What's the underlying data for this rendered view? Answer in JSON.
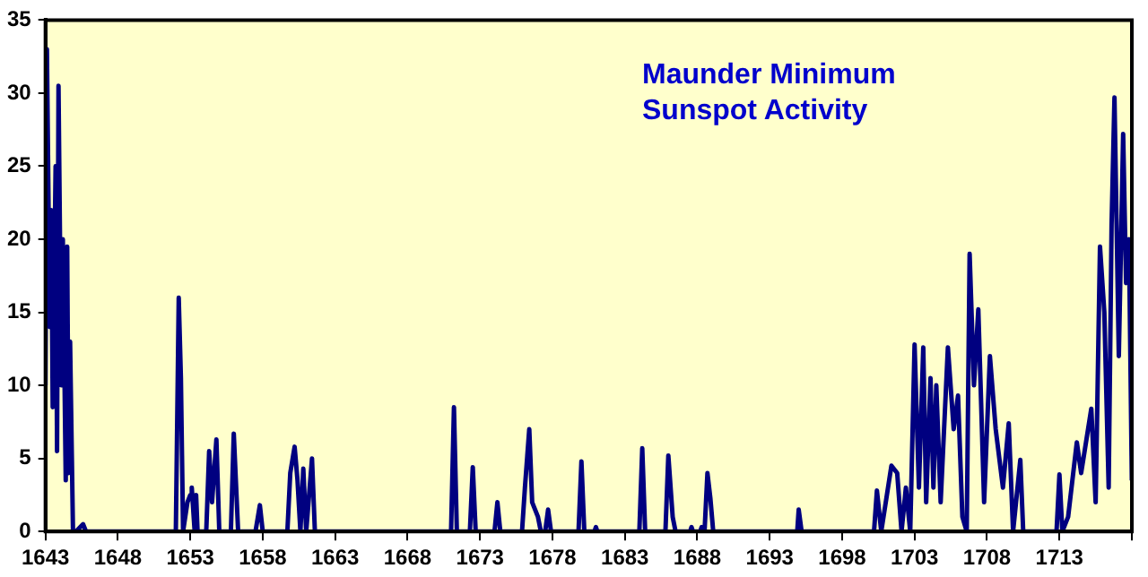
{
  "chart_data": {
    "type": "line",
    "title": "Maunder Minimum Sunspot Activity",
    "xlim": [
      1643,
      1718
    ],
    "xticks": [
      1643,
      1648,
      1653,
      1658,
      1663,
      1668,
      1673,
      1678,
      1683,
      1688,
      1693,
      1698,
      1703,
      1708,
      1713,
      {
        "value": 1718,
        "label": null
      }
    ],
    "ylim": [
      0,
      35
    ],
    "yticks": [
      0,
      5,
      10,
      15,
      20,
      25,
      30,
      35
    ],
    "grid": false,
    "legend": false,
    "marker": "none",
    "line_style": "solid",
    "series": [
      {
        "color": "#000080",
        "x": [
          1643,
          1643.1,
          1643.3,
          1643.4,
          1643.5,
          1643.7,
          1643.8,
          1643.9,
          1644.1,
          1644.2,
          1644.4,
          1644.5,
          1644.6,
          1644.7,
          1644.9,
          1645.1,
          1645.6,
          1645.8,
          1652,
          1652.2,
          1652.35,
          1652.5,
          1652.8,
          1653,
          1653.1,
          1653.3,
          1653.4,
          1653.5,
          1654.1,
          1654.3,
          1654.5,
          1654.8,
          1655,
          1655.8,
          1656,
          1656.3,
          1657.5,
          1657.8,
          1658,
          1659.7,
          1659.9,
          1660.2,
          1660.4,
          1660.6,
          1660.8,
          1661,
          1661.4,
          1661.6,
          1671,
          1671.2,
          1671.4,
          1672.3,
          1672.5,
          1672.7,
          1674,
          1674.2,
          1674.4,
          1675.9,
          1676.1,
          1676.4,
          1676.6,
          1677,
          1677.2,
          1677.5,
          1677.7,
          1677.9,
          1679.8,
          1680,
          1680.2,
          1680.9,
          1681,
          1681.1,
          1684,
          1684.2,
          1684.4,
          1685.8,
          1686,
          1686.3,
          1686.5,
          1687.5,
          1687.6,
          1687.7,
          1688.2,
          1688.3,
          1688.5,
          1688.7,
          1688.9,
          1689.1,
          1694.9,
          1695,
          1695.2,
          1700.2,
          1700.4,
          1700.7,
          1701.4,
          1701.8,
          1702.1,
          1702.4,
          1702.7,
          1703,
          1703.3,
          1703.6,
          1703.8,
          1704.1,
          1704.3,
          1704.5,
          1704.8,
          1705.3,
          1705.7,
          1706,
          1706.3,
          1706.6,
          1706.8,
          1707.1,
          1707.4,
          1707.8,
          1708.2,
          1708.6,
          1709.1,
          1709.5,
          1709.8,
          1710.3,
          1710.5,
          1712.8,
          1713,
          1713.2,
          1713.6,
          1714.2,
          1714.5,
          1715.2,
          1715.5,
          1715.8,
          1716.1,
          1716.4,
          1716.6,
          1716.8,
          1717.1,
          1717.4,
          1717.6,
          1717.8,
          1718
        ],
        "values": [
          10,
          33,
          14,
          22,
          8.5,
          25,
          5.5,
          30.5,
          10,
          20,
          3.5,
          19.5,
          4,
          13,
          0,
          0,
          0.5,
          0,
          0,
          16,
          10.5,
          0,
          2,
          2.5,
          3,
          0,
          2.5,
          0,
          0,
          5.5,
          2,
          6.3,
          0,
          0,
          6.7,
          0,
          0,
          1.8,
          0,
          0,
          4,
          5.8,
          3.5,
          0,
          4.3,
          0,
          5,
          0,
          0,
          8.5,
          0,
          0,
          4.4,
          0,
          0,
          2,
          0,
          0,
          3,
          7,
          2,
          1,
          0,
          0,
          1.5,
          0,
          0,
          4.8,
          0,
          0,
          0.3,
          0,
          0,
          5.7,
          0,
          0,
          5.2,
          1,
          0,
          0,
          0.3,
          0,
          0,
          0.3,
          0,
          4,
          2.3,
          0,
          0,
          1.5,
          0,
          0,
          2.8,
          0,
          4.5,
          4,
          0,
          3,
          0,
          12.8,
          3,
          12.6,
          2,
          10.5,
          3,
          10,
          2,
          12.6,
          7,
          9.3,
          1,
          0,
          19,
          10,
          15.2,
          2,
          12,
          7,
          3,
          7.4,
          0,
          4.9,
          0,
          0,
          3.9,
          0,
          1,
          6.1,
          4,
          8.4,
          2,
          19.5,
          15,
          3,
          21,
          29.7,
          12,
          27.2,
          17,
          20,
          3.5
        ]
      }
    ]
  }
}
